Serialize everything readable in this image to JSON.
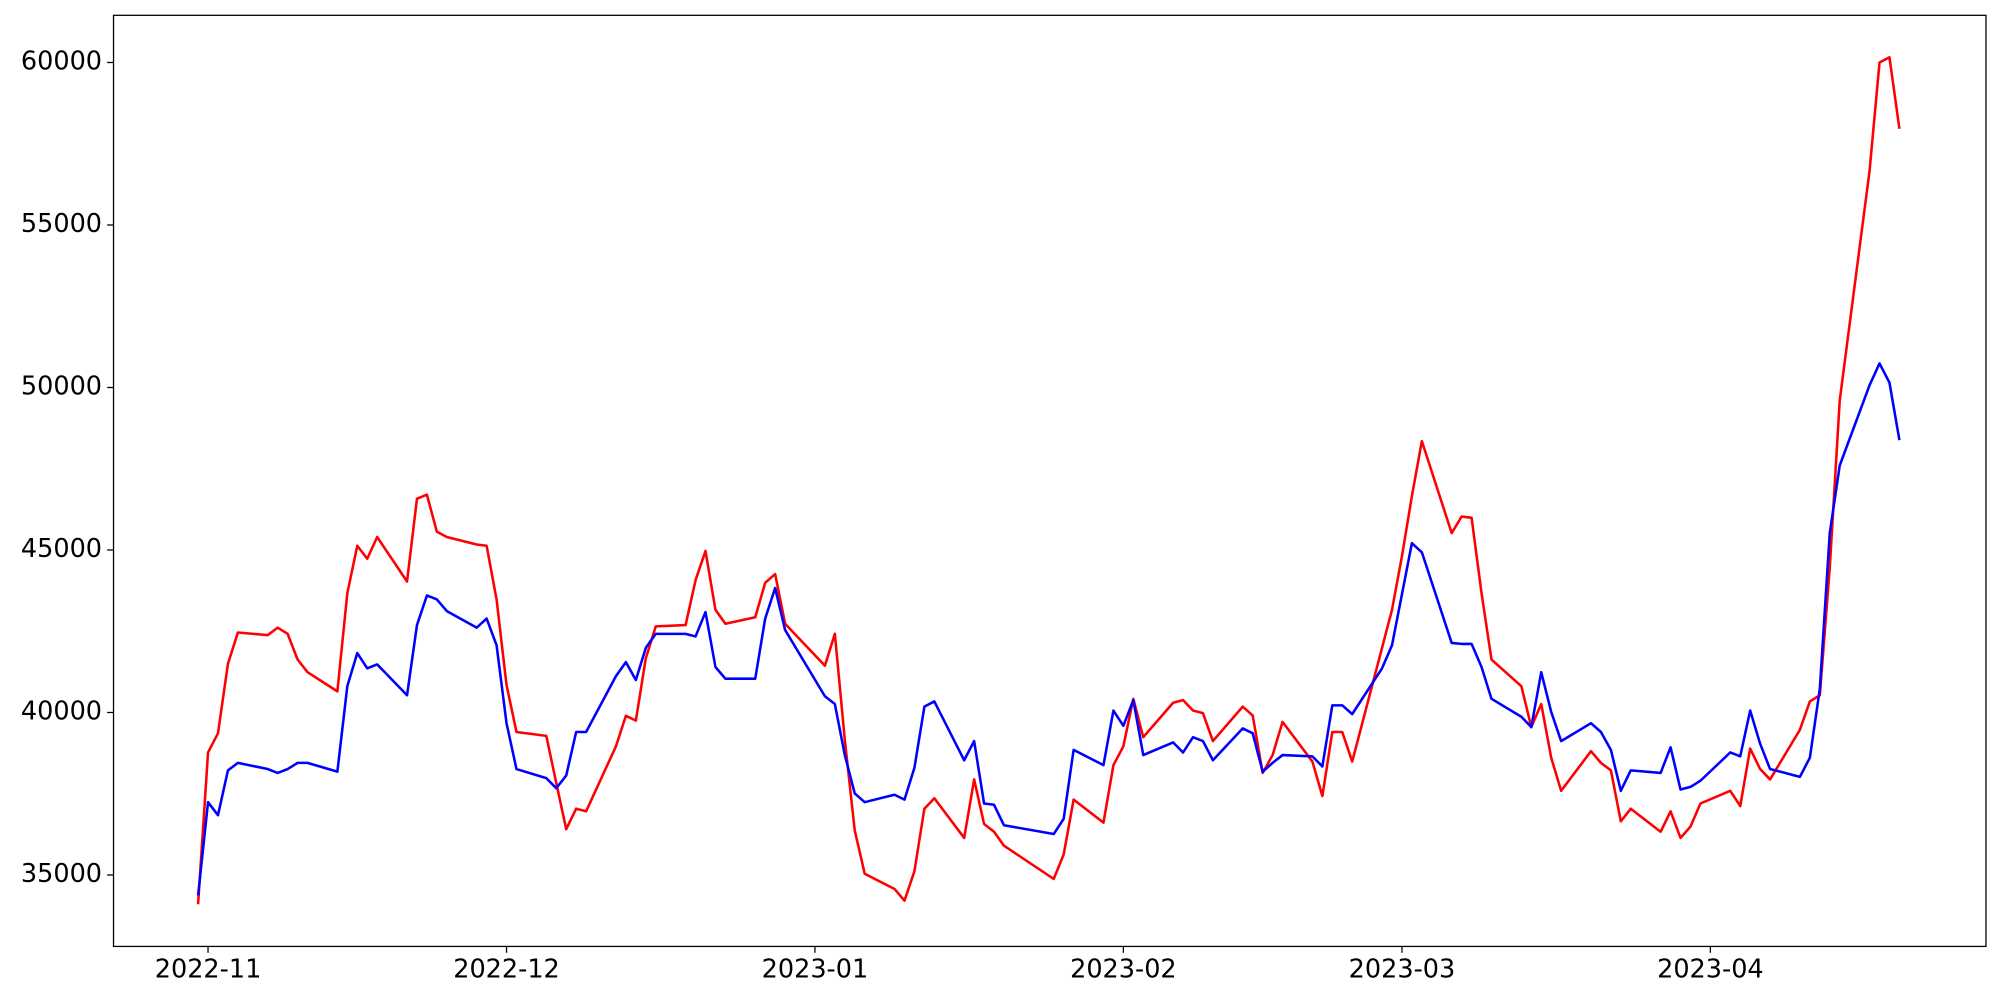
{
  "chart_data": {
    "type": "line",
    "x": [
      -1,
      0,
      1,
      2,
      3,
      6,
      7,
      8,
      9,
      10,
      13,
      14,
      15,
      16,
      17,
      20,
      21,
      22,
      23,
      24,
      27,
      28,
      29,
      30,
      31,
      34,
      35,
      36,
      37,
      38,
      41,
      42,
      43,
      44,
      45,
      48,
      49,
      50,
      51,
      52,
      55,
      56,
      57,
      58,
      62,
      63,
      64,
      65,
      66,
      69,
      70,
      71,
      72,
      73,
      76,
      77,
      78,
      79,
      80,
      85,
      86,
      87,
      90,
      91,
      92,
      93,
      94,
      97,
      98,
      99,
      100,
      101,
      104,
      105,
      106,
      107,
      108,
      111,
      112,
      113,
      114,
      115,
      118,
      119,
      120,
      121,
      122,
      125,
      126,
      127,
      128,
      129,
      132,
      133,
      134,
      135,
      136,
      139,
      140,
      141,
      142,
      143,
      146,
      147,
      148,
      149,
      150,
      153,
      154,
      155,
      156,
      157,
      160,
      161,
      162,
      163,
      164,
      167,
      168,
      169,
      170
    ],
    "series": [
      {
        "color": "#ff0000",
        "values": [
          34100,
          38770,
          39360,
          41500,
          42460,
          42380,
          42610,
          42420,
          41630,
          41240,
          40650,
          43670,
          45130,
          44730,
          45400,
          44030,
          46580,
          46700,
          45560,
          45400,
          45170,
          45130,
          43480,
          40850,
          39400,
          39280,
          37830,
          36410,
          37040,
          36960,
          38960,
          39900,
          39750,
          41670,
          42650,
          42690,
          44070,
          44970,
          43160,
          42730,
          42930,
          43990,
          44260,
          42730,
          41440,
          42420,
          39160,
          36370,
          35040,
          34570,
          34210,
          35120,
          37040,
          37360,
          36140,
          37940,
          36570,
          36330,
          35900,
          34880,
          35630,
          37320,
          36610,
          38380,
          38960,
          40420,
          39240,
          40300,
          40380,
          40060,
          39980,
          39120,
          40180,
          39910,
          38140,
          38690,
          39710,
          38490,
          37430,
          39400,
          39400,
          38490,
          41990,
          43160,
          44810,
          46660,
          48350,
          45520,
          46030,
          45990,
          43670,
          41630,
          40810,
          39550,
          40260,
          38610,
          37590,
          38810,
          38450,
          38220,
          36650,
          37040,
          36330,
          36960,
          36140,
          36490,
          37200,
          37590,
          37120,
          38890,
          38260,
          37940,
          39470,
          40340,
          40530,
          44460,
          49600,
          56670,
          60000,
          60160,
          57960
        ]
      },
      {
        "color": "#0000ff",
        "values": [
          34370,
          37240,
          36840,
          38220,
          38450,
          38260,
          38140,
          38260,
          38450,
          38450,
          38180,
          40810,
          41830,
          41360,
          41480,
          40530,
          42690,
          43600,
          43480,
          43120,
          42610,
          42890,
          42070,
          39670,
          38260,
          37980,
          37670,
          38060,
          39400,
          39400,
          41120,
          41550,
          41000,
          41990,
          42420,
          42420,
          42340,
          43090,
          41400,
          41040,
          41040,
          42890,
          43830,
          42540,
          40500,
          40260,
          38690,
          37510,
          37240,
          37470,
          37320,
          38300,
          40180,
          40340,
          38530,
          39120,
          37200,
          37160,
          36530,
          36260,
          36730,
          38850,
          38380,
          40060,
          39590,
          40380,
          38690,
          39080,
          38770,
          39240,
          39120,
          38530,
          39510,
          39360,
          38180,
          38450,
          38690,
          38650,
          38340,
          40220,
          40220,
          39950,
          41360,
          42070,
          43640,
          45210,
          44930,
          42140,
          42110,
          42110,
          41400,
          40420,
          39870,
          39550,
          41240,
          40020,
          39120,
          39670,
          39400,
          38850,
          37590,
          38220,
          38140,
          38930,
          37630,
          37710,
          37900,
          38770,
          38650,
          40060,
          39040,
          38260,
          38020,
          38610,
          40730,
          45520,
          47600,
          50070,
          50740,
          50150,
          48380
        ]
      }
    ],
    "xlim": [
      -9.5,
      178.7
    ],
    "xticks": [
      {
        "value": 0,
        "label": "2022-11"
      },
      {
        "value": 30,
        "label": "2022-12"
      },
      {
        "value": 61,
        "label": "2023-01"
      },
      {
        "value": 92,
        "label": "2023-02"
      },
      {
        "value": 120,
        "label": "2023-03"
      },
      {
        "value": 151,
        "label": "2023-04"
      }
    ],
    "ylim": [
      32802,
      61452
    ],
    "yticks": [
      35000,
      40000,
      45000,
      50000,
      55000,
      60000
    ]
  }
}
